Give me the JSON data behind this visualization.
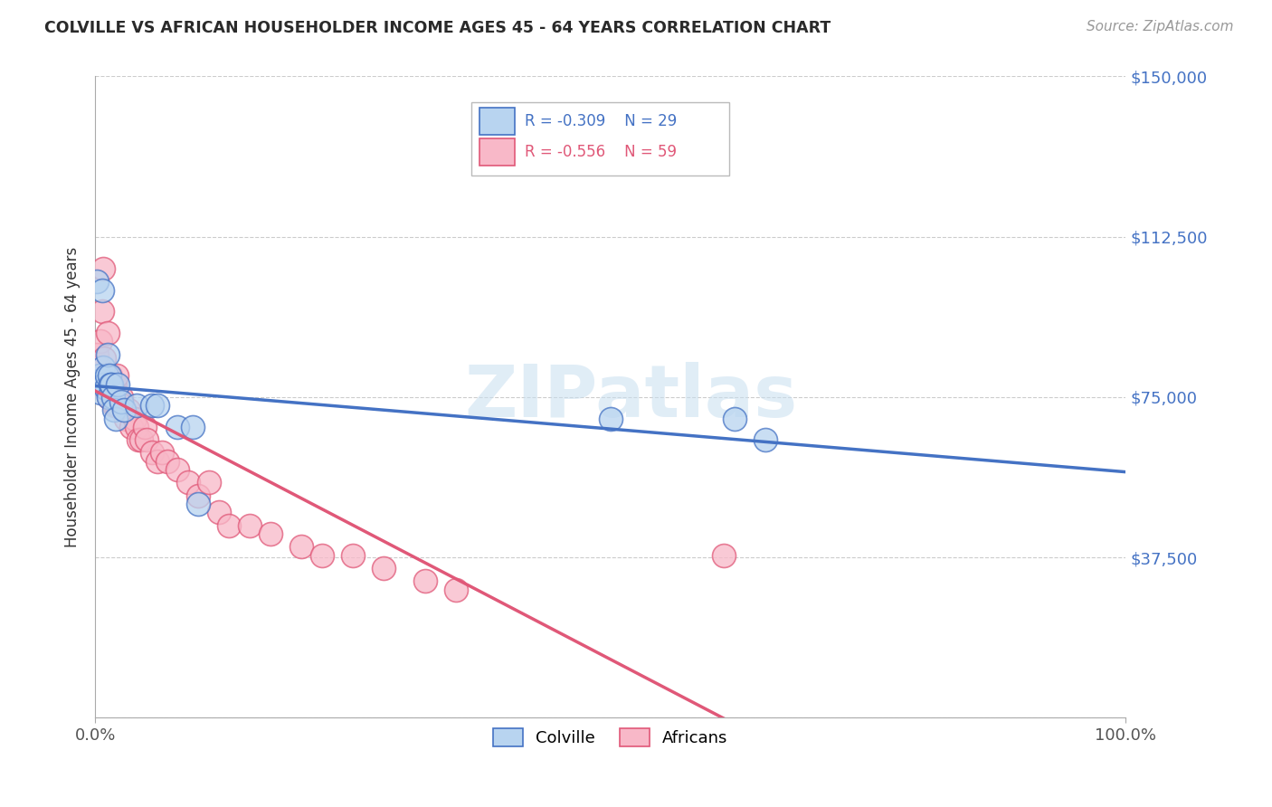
{
  "title": "COLVILLE VS AFRICAN HOUSEHOLDER INCOME AGES 45 - 64 YEARS CORRELATION CHART",
  "source": "Source: ZipAtlas.com",
  "ylabel": "Householder Income Ages 45 - 64 years",
  "xlim": [
    0,
    1.0
  ],
  "ylim": [
    0,
    150000
  ],
  "yticks": [
    0,
    37500,
    75000,
    112500,
    150000
  ],
  "ytick_labels": [
    "",
    "$37,500",
    "$75,000",
    "$112,500",
    "$150,000"
  ],
  "legend_blue_r": "-0.309",
  "legend_blue_n": "29",
  "legend_pink_r": "-0.556",
  "legend_pink_n": "59",
  "legend_label_blue": "Colville",
  "legend_label_pink": "Africans",
  "watermark": "ZIPatlas",
  "colville_color": "#b8d4f0",
  "africans_color": "#f8b8c8",
  "colville_line_color": "#4472C4",
  "africans_line_color": "#E05878",
  "colville_x": [
    0.002,
    0.004,
    0.005,
    0.006,
    0.007,
    0.008,
    0.009,
    0.01,
    0.011,
    0.012,
    0.013,
    0.014,
    0.015,
    0.016,
    0.017,
    0.018,
    0.02,
    0.022,
    0.025,
    0.028,
    0.04,
    0.055,
    0.06,
    0.08,
    0.095,
    0.1,
    0.5,
    0.62,
    0.65
  ],
  "colville_y": [
    102000,
    80000,
    76000,
    79000,
    100000,
    82000,
    78000,
    77000,
    80000,
    85000,
    75000,
    80000,
    78000,
    78000,
    75000,
    72000,
    70000,
    78000,
    74000,
    72000,
    73000,
    73000,
    73000,
    68000,
    68000,
    50000,
    70000,
    70000,
    65000
  ],
  "africans_x": [
    0.002,
    0.003,
    0.004,
    0.005,
    0.005,
    0.006,
    0.007,
    0.008,
    0.009,
    0.01,
    0.01,
    0.011,
    0.012,
    0.013,
    0.013,
    0.014,
    0.015,
    0.016,
    0.016,
    0.017,
    0.018,
    0.018,
    0.019,
    0.02,
    0.02,
    0.021,
    0.022,
    0.022,
    0.025,
    0.026,
    0.028,
    0.03,
    0.032,
    0.035,
    0.038,
    0.04,
    0.042,
    0.045,
    0.048,
    0.05,
    0.055,
    0.06,
    0.065,
    0.07,
    0.08,
    0.09,
    0.1,
    0.11,
    0.12,
    0.13,
    0.15,
    0.17,
    0.2,
    0.22,
    0.25,
    0.28,
    0.32,
    0.35,
    0.61
  ],
  "africans_y": [
    85000,
    80000,
    82000,
    88000,
    78000,
    80000,
    95000,
    105000,
    84000,
    80000,
    80000,
    78000,
    90000,
    80000,
    75000,
    80000,
    80000,
    78000,
    75000,
    78000,
    75000,
    73000,
    78000,
    75000,
    73000,
    80000,
    73000,
    75000,
    75000,
    73000,
    72000,
    70000,
    72000,
    68000,
    70000,
    68000,
    65000,
    65000,
    68000,
    65000,
    62000,
    60000,
    62000,
    60000,
    58000,
    55000,
    52000,
    55000,
    48000,
    45000,
    45000,
    43000,
    40000,
    38000,
    38000,
    35000,
    32000,
    30000,
    38000
  ]
}
